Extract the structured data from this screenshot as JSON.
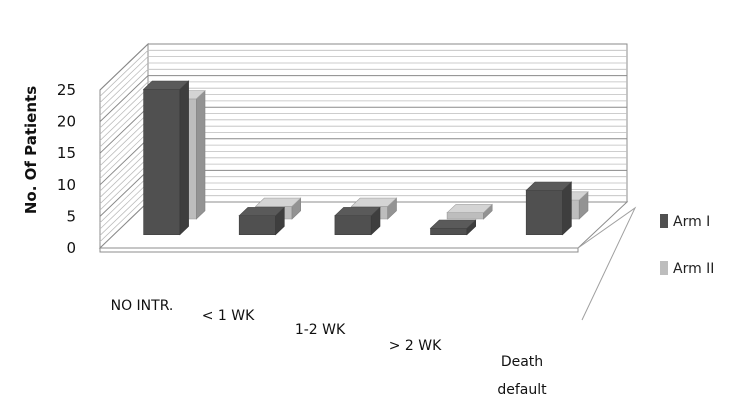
{
  "chart_data": {
    "type": "bar",
    "style": "3d-clustered-columns",
    "ylabel": "No. Of Patients",
    "xlabel": "",
    "ylim": [
      0,
      25
    ],
    "yticks": [
      0,
      5,
      10,
      15,
      20,
      25
    ],
    "grid": true,
    "legend_position": "right",
    "categories": [
      {
        "line1": "NO INTR.",
        "line2": ""
      },
      {
        "line1": "< 1 WK",
        "line2": ""
      },
      {
        "line1": "1-2 WK",
        "line2": ""
      },
      {
        "line1": "> 2 WK",
        "line2": ""
      },
      {
        "line1": "Death",
        "line2": "default"
      }
    ],
    "series": [
      {
        "name": "Arm I",
        "values": [
          23,
          3,
          3,
          1,
          7
        ],
        "color": "#505050"
      },
      {
        "name": "Arm II",
        "values": [
          19,
          2,
          2,
          1,
          3
        ],
        "color": "#bdbdbd"
      }
    ]
  }
}
